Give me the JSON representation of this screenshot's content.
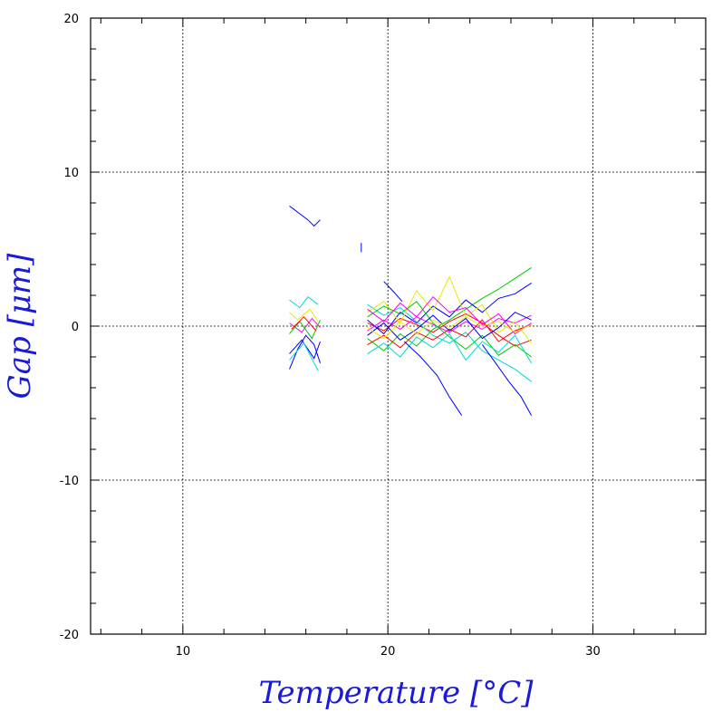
{
  "chart_data": {
    "type": "line",
    "title": "",
    "xlabel": "Temperature [°C]",
    "ylabel": "Gap [μm]",
    "xlim": [
      5.5,
      35.5
    ],
    "ylim": [
      -20,
      20
    ],
    "xticks": [
      10,
      20,
      30
    ],
    "yticks": [
      -20,
      -10,
      0,
      10,
      20
    ],
    "x_tick_labels": [
      "10",
      "20",
      "30"
    ],
    "y_tick_labels": [
      "-20",
      "-10",
      "0",
      "10",
      "20"
    ],
    "grid": true,
    "legend": "none",
    "series_colors": [
      "#ff0000",
      "#00cc00",
      "#0000ff",
      "#00d8d8",
      "#ff00ff",
      "#e8e800"
    ],
    "series": [
      {
        "color": "#0000ff",
        "x": [
          15.2,
          15.6,
          16.0,
          16.4,
          16.7
        ],
        "y": [
          -2.8,
          -1.5,
          -0.6,
          -1.2,
          -2.4
        ]
      },
      {
        "color": "#00d8d8",
        "x": [
          15.2,
          15.7,
          16.1,
          16.6
        ],
        "y": [
          1.7,
          1.2,
          1.9,
          1.4
        ]
      },
      {
        "color": "#ff00ff",
        "x": [
          15.2,
          15.8,
          16.3,
          16.7
        ],
        "y": [
          0.2,
          -0.4,
          0.5,
          -0.1
        ]
      },
      {
        "color": "#e8e800",
        "x": [
          15.2,
          15.6,
          16.2,
          16.6
        ],
        "y": [
          0.9,
          0.4,
          1.1,
          0.3
        ]
      },
      {
        "color": "#00cc00",
        "x": [
          15.2,
          15.7,
          16.3,
          16.7
        ],
        "y": [
          -0.5,
          0.3,
          -0.8,
          0.4
        ]
      },
      {
        "color": "#ff0000",
        "x": [
          15.3,
          15.9,
          16.5
        ],
        "y": [
          -0.2,
          0.6,
          -0.3
        ]
      },
      {
        "color": "#0000ff",
        "x": [
          15.2,
          15.8,
          16.4,
          16.7
        ],
        "y": [
          -1.8,
          -0.9,
          -2.1,
          -1.0
        ]
      },
      {
        "color": "#00d8d8",
        "x": [
          15.2,
          15.9,
          16.6
        ],
        "y": [
          -2.2,
          -1.1,
          -2.9
        ]
      },
      {
        "color": "#0000ff",
        "x": [
          15.2,
          15.4,
          15.8,
          16.1,
          16.4,
          16.7
        ],
        "y": [
          7.8,
          7.6,
          7.2,
          6.9,
          6.5,
          6.9
        ]
      },
      {
        "color": "#0000ff",
        "x": [
          18.7,
          18.7
        ],
        "y": [
          5.4,
          4.8
        ]
      },
      {
        "color": "#0000ff",
        "x": [
          19.8,
          20.3,
          20.7
        ],
        "y": [
          2.9,
          2.2,
          1.6
        ]
      },
      {
        "color": "#ff0000",
        "x": [
          19.0,
          19.8,
          20.6,
          21.4,
          22.2,
          23.0,
          23.8,
          24.6,
          25.4,
          26.2,
          27.0
        ],
        "y": [
          0.2,
          -0.3,
          0.5,
          0.1,
          -0.4,
          0.3,
          0.8,
          0.2,
          -0.6,
          -1.3,
          -0.9
        ]
      },
      {
        "color": "#00cc00",
        "x": [
          19.0,
          19.8,
          20.6,
          21.4,
          22.2,
          23.0,
          23.8,
          24.6,
          25.4,
          26.2,
          27.0
        ],
        "y": [
          -0.8,
          -1.6,
          -0.5,
          -1.3,
          -0.2,
          0.4,
          1.1,
          1.8,
          2.4,
          3.1,
          3.8
        ]
      },
      {
        "color": "#0000ff",
        "x": [
          19.0,
          19.8,
          20.6,
          21.4,
          22.2,
          23.0,
          23.8,
          24.6,
          25.4,
          26.2,
          27.0
        ],
        "y": [
          0.4,
          -0.5,
          0.9,
          0.2,
          1.3,
          0.6,
          1.7,
          0.9,
          1.8,
          2.1,
          2.8
        ]
      },
      {
        "color": "#00d8d8",
        "x": [
          19.0,
          19.8,
          20.6,
          21.4,
          22.2,
          23.0,
          23.8,
          24.6,
          25.4,
          26.2,
          27.0
        ],
        "y": [
          1.4,
          0.7,
          1.2,
          0.3,
          -0.6,
          -1.1,
          -0.4,
          -1.6,
          -2.2,
          -2.8,
          -3.6
        ]
      },
      {
        "color": "#ff00ff",
        "x": [
          19.0,
          19.8,
          20.6,
          21.4,
          22.2,
          23.0,
          23.8,
          24.6,
          25.4,
          26.2,
          27.0
        ],
        "y": [
          -0.3,
          0.4,
          -0.2,
          0.6,
          0.1,
          -0.4,
          0.3,
          -0.2,
          0.5,
          0.2,
          0.7
        ]
      },
      {
        "color": "#e8e800",
        "x": [
          19.0,
          19.8,
          20.6,
          21.4,
          22.2,
          23.0,
          23.8,
          24.6,
          25.4,
          26.2,
          27.0
        ],
        "y": [
          0.9,
          1.6,
          0.2,
          2.3,
          1.0,
          3.2,
          0.6,
          1.4,
          -0.4,
          0.3,
          -1.1
        ]
      },
      {
        "color": "#ff0000",
        "x": [
          19.0,
          19.8,
          20.6,
          21.4,
          22.2,
          23.0,
          23.8,
          24.6,
          25.4,
          26.2,
          27.0
        ],
        "y": [
          -1.2,
          -0.6,
          -1.4,
          -0.4,
          -0.9,
          -0.2,
          -0.7,
          0.4,
          -1.0,
          -0.3,
          0.1
        ]
      },
      {
        "color": "#00cc00",
        "x": [
          19.0,
          19.8,
          20.6,
          21.4,
          22.2,
          23.0,
          23.8,
          24.6,
          25.4,
          26.2,
          27.0
        ],
        "y": [
          0.6,
          1.3,
          0.8,
          1.6,
          0.2,
          -0.7,
          -1.5,
          -0.6,
          -1.9,
          -1.2,
          -2.0
        ]
      },
      {
        "color": "#0000ff",
        "x": [
          19.0,
          19.8,
          20.6,
          21.4,
          22.2,
          23.0,
          23.8,
          24.6,
          25.4,
          26.2,
          27.0
        ],
        "y": [
          -0.6,
          0.2,
          -0.9,
          -0.2,
          0.7,
          -0.3,
          0.5,
          -0.8,
          -0.1,
          0.9,
          0.4
        ]
      },
      {
        "color": "#00d8d8",
        "x": [
          19.0,
          19.8,
          20.6,
          21.4,
          22.2,
          23.0,
          23.8,
          24.6,
          25.4,
          26.2,
          27.0
        ],
        "y": [
          -1.8,
          -1.1,
          -2.0,
          -0.7,
          -1.4,
          -0.5,
          -2.2,
          -1.0,
          -1.7,
          -0.6,
          -2.4
        ]
      },
      {
        "color": "#ff00ff",
        "x": [
          19.0,
          19.8,
          20.6,
          21.4,
          22.2,
          23.0,
          23.8,
          24.6,
          25.4,
          26.2,
          27.0
        ],
        "y": [
          1.1,
          0.3,
          1.5,
          0.6,
          1.9,
          0.9,
          1.2,
          0.1,
          0.8,
          -0.5,
          0.2
        ]
      },
      {
        "color": "#e8e800",
        "x": [
          19.0,
          19.8,
          20.6,
          21.4,
          22.2,
          23.0,
          23.8,
          24.6,
          25.4,
          26.2,
          27.0
        ],
        "y": [
          -0.1,
          -0.8,
          0.3,
          -0.5,
          0.4,
          -0.1,
          0.6,
          0.0,
          0.3,
          -0.4,
          0.1
        ]
      },
      {
        "color": "#0000ff",
        "x": [
          20.8,
          21.6,
          22.4,
          23.0,
          23.6
        ],
        "y": [
          -1.0,
          -2.0,
          -3.2,
          -4.6,
          -5.8
        ]
      },
      {
        "color": "#0000ff",
        "x": [
          24.6,
          25.2,
          25.9,
          26.5,
          27.0
        ],
        "y": [
          -1.2,
          -2.3,
          -3.6,
          -4.6,
          -5.8
        ]
      }
    ]
  }
}
